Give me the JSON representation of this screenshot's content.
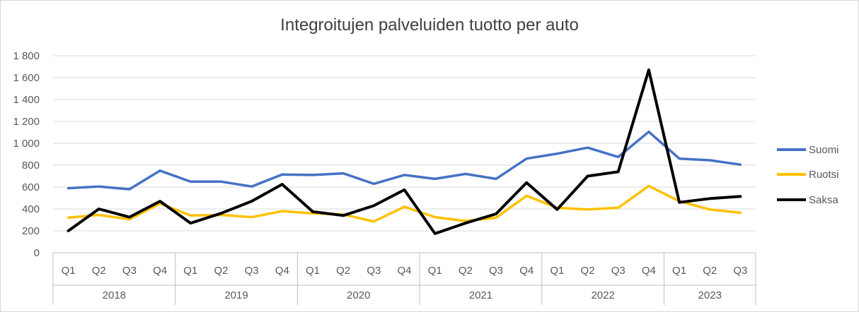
{
  "chart_data": {
    "type": "line",
    "title": "Integroitujen palveluiden tuotto per auto",
    "xlabel": "",
    "ylabel": "",
    "ylim": [
      0,
      1800
    ],
    "yticks": [
      0,
      200,
      400,
      600,
      800,
      1000,
      1200,
      1400,
      1600,
      1800
    ],
    "ytick_labels": [
      "0",
      "200",
      "400",
      "600",
      "800",
      "1 000",
      "1 200",
      "1 400",
      "1 600",
      "1 800"
    ],
    "categories": [
      "Q1",
      "Q2",
      "Q3",
      "Q4",
      "Q1",
      "Q2",
      "Q3",
      "Q4",
      "Q1",
      "Q2",
      "Q3",
      "Q4",
      "Q1",
      "Q2",
      "Q3",
      "Q4",
      "Q1",
      "Q2",
      "Q3",
      "Q4",
      "Q1",
      "Q2",
      "Q3"
    ],
    "groups": [
      {
        "label": "2018",
        "count": 4
      },
      {
        "label": "2019",
        "count": 4
      },
      {
        "label": "2020",
        "count": 4
      },
      {
        "label": "2021",
        "count": 4
      },
      {
        "label": "2022",
        "count": 4
      },
      {
        "label": "2023",
        "count": 3
      }
    ],
    "grid": true,
    "legend_position": "right",
    "series": [
      {
        "name": "Suomi",
        "color": "#4472c4",
        "values": [
          590,
          605,
          580,
          750,
          650,
          650,
          605,
          715,
          710,
          725,
          630,
          710,
          675,
          720,
          675,
          860,
          905,
          960,
          875,
          1105,
          860,
          845,
          805
        ]
      },
      {
        "name": "Ruotsi",
        "color": "#ffc000",
        "values": [
          320,
          345,
          305,
          450,
          340,
          345,
          325,
          380,
          360,
          350,
          285,
          420,
          325,
          290,
          320,
          520,
          410,
          395,
          410,
          610,
          470,
          395,
          365
        ]
      },
      {
        "name": "Saksa",
        "color": "#000000",
        "values": [
          200,
          400,
          325,
          470,
          270,
          360,
          470,
          625,
          375,
          340,
          430,
          575,
          175,
          270,
          355,
          640,
          395,
          700,
          740,
          1670,
          460,
          495,
          515
        ]
      }
    ]
  }
}
